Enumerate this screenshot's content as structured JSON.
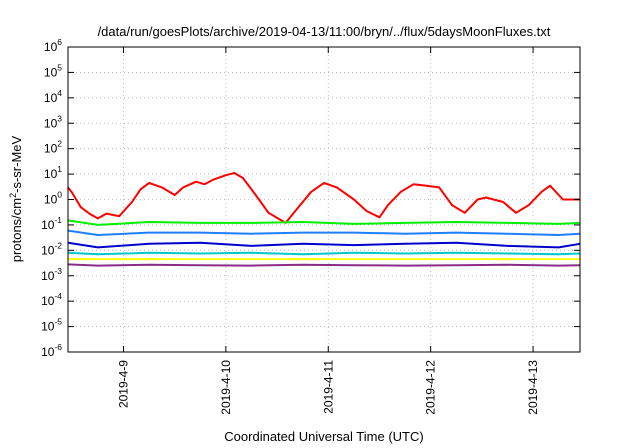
{
  "chart_data": {
    "type": "line",
    "title": "/data/run/goesPlots/archive/2019-04-13/11:00/bryn/../flux/5daysMoonFluxes.txt",
    "xlabel": "Coordinated Universal Time (UTC)",
    "ylabel": {
      "base": "protons/cm",
      "sup": "2",
      "rest": "-s-sr-MeV"
    },
    "y_scale": "log",
    "ylim": [
      1e-06,
      1000000
    ],
    "y_ticks": [
      {
        "value": 1e-06,
        "base": "10",
        "exp": "-6"
      },
      {
        "value": 1e-05,
        "base": "10",
        "exp": "-5"
      },
      {
        "value": 0.0001,
        "base": "10",
        "exp": "-4"
      },
      {
        "value": 0.001,
        "base": "10",
        "exp": "-3"
      },
      {
        "value": 0.01,
        "base": "10",
        "exp": "-2"
      },
      {
        "value": 0.1,
        "base": "10",
        "exp": "-1"
      },
      {
        "value": 1,
        "base": "10",
        "exp": "0"
      },
      {
        "value": 10,
        "base": "10",
        "exp": "1"
      },
      {
        "value": 100,
        "base": "10",
        "exp": "2"
      },
      {
        "value": 1000,
        "base": "10",
        "exp": "3"
      },
      {
        "value": 10000,
        "base": "10",
        "exp": "4"
      },
      {
        "value": 100000,
        "base": "10",
        "exp": "5"
      },
      {
        "value": 1000000,
        "base": "10",
        "exp": "6"
      }
    ],
    "xlim": [
      "2019-04-08 11:00",
      "2019-04-13 11:00"
    ],
    "x_ticks": [
      {
        "value": "2019-04-09 00:00",
        "label": "2019-4-9"
      },
      {
        "value": "2019-04-10 00:00",
        "label": "2019-4-10"
      },
      {
        "value": "2019-04-11 00:00",
        "label": "2019-4-11"
      },
      {
        "value": "2019-04-12 00:00",
        "label": "2019-4-12"
      },
      {
        "value": "2019-04-13 00:00",
        "label": "2019-4-13"
      }
    ],
    "grid": true,
    "legend": "none",
    "series": [
      {
        "color": "#ff0000",
        "x": [
          "2019-04-08 11:00",
          "2019-04-08 12:00",
          "2019-04-08 14:00",
          "2019-04-08 16:00",
          "2019-04-08 18:00",
          "2019-04-08 20:00",
          "2019-04-08 23:00",
          "2019-04-09 02:00",
          "2019-04-09 04:00",
          "2019-04-09 06:00",
          "2019-04-09 09:00",
          "2019-04-09 12:00",
          "2019-04-09 14:00",
          "2019-04-09 17:00",
          "2019-04-09 19:00",
          "2019-04-09 21:00",
          "2019-04-10 00:00",
          "2019-04-10 02:00",
          "2019-04-10 04:00",
          "2019-04-10 07:00",
          "2019-04-10 10:00",
          "2019-04-10 14:00",
          "2019-04-10 17:00",
          "2019-04-10 20:00",
          "2019-04-10 23:00",
          "2019-04-11 02:00",
          "2019-04-11 06:00",
          "2019-04-11 09:00",
          "2019-04-11 12:00",
          "2019-04-11 14:00",
          "2019-04-11 17:00",
          "2019-04-11 20:00",
          "2019-04-11 23:00",
          "2019-04-12 02:00",
          "2019-04-12 05:00",
          "2019-04-12 08:00",
          "2019-04-12 11:00",
          "2019-04-12 13:00",
          "2019-04-12 17:00",
          "2019-04-12 20:00",
          "2019-04-12 23:00",
          "2019-04-13 02:00",
          "2019-04-13 04:00",
          "2019-04-13 07:00",
          "2019-04-13 11:00"
        ],
        "y": [
          3.0,
          1.8,
          0.5,
          0.28,
          0.18,
          0.28,
          0.22,
          0.8,
          2.5,
          4.5,
          3.0,
          1.5,
          3.0,
          5.0,
          4.0,
          6.0,
          9.0,
          11.0,
          7.0,
          1.5,
          0.3,
          0.12,
          0.5,
          2.0,
          4.5,
          3.0,
          1.0,
          0.35,
          0.2,
          0.6,
          2.0,
          4.0,
          3.5,
          3.0,
          0.6,
          0.3,
          1.0,
          1.2,
          0.8,
          0.3,
          0.6,
          2.0,
          3.5,
          1.0,
          1.0
        ]
      },
      {
        "color": "#00ee00",
        "x": [
          "2019-04-08 11:00",
          "2019-04-08 18:00",
          "2019-04-09 06:00",
          "2019-04-09 18:00",
          "2019-04-10 06:00",
          "2019-04-10 18:00",
          "2019-04-11 06:00",
          "2019-04-11 18:00",
          "2019-04-12 06:00",
          "2019-04-12 18:00",
          "2019-04-13 06:00",
          "2019-04-13 11:00"
        ],
        "y": [
          0.15,
          0.1,
          0.13,
          0.12,
          0.12,
          0.13,
          0.11,
          0.12,
          0.13,
          0.12,
          0.11,
          0.12
        ]
      },
      {
        "color": "#1f7fff",
        "x": [
          "2019-04-08 11:00",
          "2019-04-08 18:00",
          "2019-04-09 06:00",
          "2019-04-09 18:00",
          "2019-04-10 06:00",
          "2019-04-10 18:00",
          "2019-04-11 06:00",
          "2019-04-11 18:00",
          "2019-04-12 06:00",
          "2019-04-12 18:00",
          "2019-04-13 06:00",
          "2019-04-13 11:00"
        ],
        "y": [
          0.06,
          0.04,
          0.05,
          0.05,
          0.045,
          0.05,
          0.05,
          0.045,
          0.05,
          0.045,
          0.04,
          0.045
        ]
      },
      {
        "color": "#0000cc",
        "x": [
          "2019-04-08 11:00",
          "2019-04-08 18:00",
          "2019-04-09 06:00",
          "2019-04-09 18:00",
          "2019-04-10 06:00",
          "2019-04-10 18:00",
          "2019-04-11 06:00",
          "2019-04-11 18:00",
          "2019-04-12 06:00",
          "2019-04-12 18:00",
          "2019-04-13 06:00",
          "2019-04-13 11:00"
        ],
        "y": [
          0.02,
          0.013,
          0.018,
          0.02,
          0.015,
          0.018,
          0.016,
          0.018,
          0.02,
          0.015,
          0.013,
          0.018
        ]
      },
      {
        "color": "#00c8c8",
        "x": [
          "2019-04-08 11:00",
          "2019-04-08 18:00",
          "2019-04-09 06:00",
          "2019-04-09 18:00",
          "2019-04-10 06:00",
          "2019-04-10 18:00",
          "2019-04-11 06:00",
          "2019-04-11 18:00",
          "2019-04-12 06:00",
          "2019-04-12 18:00",
          "2019-04-13 06:00",
          "2019-04-13 11:00"
        ],
        "y": [
          0.008,
          0.007,
          0.008,
          0.0075,
          0.008,
          0.007,
          0.008,
          0.0075,
          0.008,
          0.0075,
          0.007,
          0.0075
        ]
      },
      {
        "color": "#ffff00",
        "x": [
          "2019-04-08 11:00",
          "2019-04-13 11:00"
        ],
        "y": [
          0.0045,
          0.0045
        ]
      },
      {
        "color": "#8a2b8a",
        "x": [
          "2019-04-08 11:00",
          "2019-04-08 18:00",
          "2019-04-09 06:00",
          "2019-04-09 18:00",
          "2019-04-10 06:00",
          "2019-04-10 18:00",
          "2019-04-11 06:00",
          "2019-04-11 18:00",
          "2019-04-12 06:00",
          "2019-04-12 18:00",
          "2019-04-13 06:00",
          "2019-04-13 11:00"
        ],
        "y": [
          0.0028,
          0.0025,
          0.0027,
          0.0026,
          0.0025,
          0.0027,
          0.0026,
          0.0025,
          0.0026,
          0.0027,
          0.0025,
          0.0026
        ]
      }
    ]
  }
}
